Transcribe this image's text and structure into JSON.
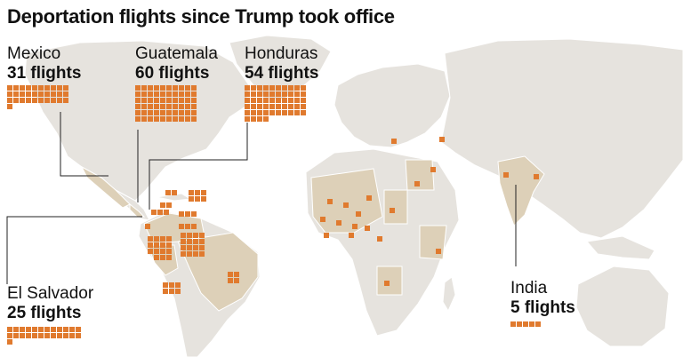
{
  "title": "Deportation flights since Trump took office",
  "colors": {
    "ocean": "#ffffff",
    "land": "#e6e3de",
    "land_highlight": "#ddd0b8",
    "border": "#ffffff",
    "marker": "#e07a2e",
    "leader_line": "#222222"
  },
  "callouts": [
    {
      "id": "mexico",
      "name": "Mexico",
      "count_label": "31 flights",
      "flights": 31
    },
    {
      "id": "guatemala",
      "name": "Guatemala",
      "count_label": "60 flights",
      "flights": 60
    },
    {
      "id": "honduras",
      "name": "Honduras",
      "count_label": "54 flights",
      "flights": 54
    },
    {
      "id": "el-salvador",
      "name": "El Salvador",
      "count_label": "25 flights",
      "flights": 25
    },
    {
      "id": "india",
      "name": "India",
      "count_label": "5 flights",
      "flights": 5
    }
  ]
}
